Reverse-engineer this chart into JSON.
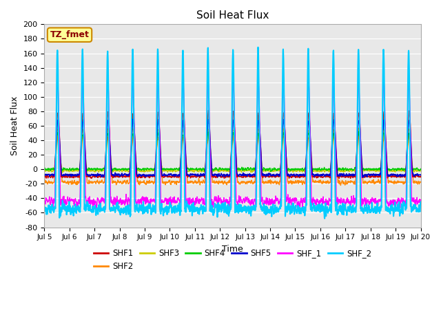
{
  "title": "Soil Heat Flux",
  "xlabel": "Time",
  "ylabel": "Soil Heat Flux",
  "ylim": [
    -80,
    200
  ],
  "xtick_labels": [
    "Jul 5",
    "Jul 6",
    "Jul 7",
    "Jul 8",
    "Jul 9",
    "Jul 10",
    "Jul 11",
    "Jul 12",
    "Jul 13",
    "Jul 14",
    "Jul 15",
    "Jul 16",
    "Jul 17",
    "Jul 18",
    "Jul 19",
    "Jul 20"
  ],
  "n_days": 15,
  "series_order": [
    "SHF2",
    "SHF3",
    "SHF4",
    "SHF1",
    "SHF5",
    "SHF_1",
    "SHF_2"
  ],
  "series": {
    "SHF1": {
      "color": "#cc0000",
      "lw": 1.0,
      "peak": 78,
      "trough": -10,
      "pw": 0.12,
      "pc": 0.54,
      "noise": 2.5
    },
    "SHF2": {
      "color": "#ff8800",
      "lw": 1.0,
      "peak": 45,
      "trough": -18,
      "pw": 0.14,
      "pc": 0.55,
      "noise": 2.0
    },
    "SHF3": {
      "color": "#cccc00",
      "lw": 1.0,
      "peak": 55,
      "trough": -2,
      "pw": 0.13,
      "pc": 0.53,
      "noise": 2.0
    },
    "SHF4": {
      "color": "#00cc00",
      "lw": 1.0,
      "peak": 50,
      "trough": 0,
      "pw": 0.12,
      "pc": 0.53,
      "noise": 2.0
    },
    "SHF5": {
      "color": "#0000cc",
      "lw": 1.2,
      "peak": 68,
      "trough": -8,
      "pw": 0.13,
      "pc": 0.54,
      "noise": 2.5
    },
    "SHF_1": {
      "color": "#ff00ff",
      "lw": 1.0,
      "peak": 118,
      "trough": -44,
      "pw": 0.1,
      "pc": 0.53,
      "noise": 3.0
    },
    "SHF_2": {
      "color": "#00ccff",
      "lw": 1.5,
      "peak": 168,
      "trough": -55,
      "pw": 0.07,
      "pc": 0.52,
      "noise": 3.5
    }
  },
  "background_color": "#e8e8e8",
  "annotation_text": "TZ_fmet",
  "annotation_bg": "#ffff99",
  "annotation_border": "#cc8800",
  "pts_per_day": 144
}
